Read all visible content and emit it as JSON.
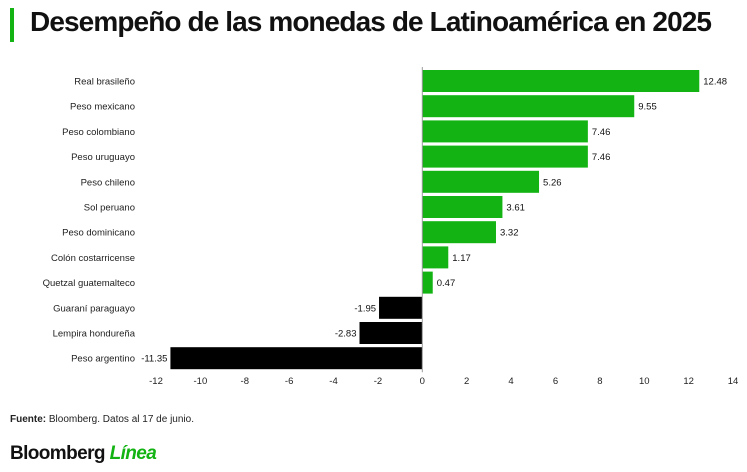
{
  "title": "Desempeño de las monedas de Latinoamérica en 2025",
  "source": {
    "label": "Fuente:",
    "text": " Bloomberg. Datos al 17 de junio."
  },
  "brand": {
    "name": "Bloomberg",
    "suffix": "Línea"
  },
  "colors": {
    "positive": "#12b312",
    "negative": "#000000",
    "accent": "#12b312"
  },
  "chart_data": {
    "type": "bar",
    "orientation": "horizontal",
    "title": "Desempeño de las monedas de Latinoamérica en 2025",
    "categories": [
      "Real brasileño",
      "Peso mexicano",
      "Peso colombiano",
      "Peso uruguayo",
      "Peso chileno",
      "Sol peruano",
      "Peso dominicano",
      "Colón costarricense",
      "Quetzal guatemalteco",
      "Guaraní paraguayo",
      "Lempira hondureña",
      "Peso argentino"
    ],
    "values": [
      12.48,
      9.55,
      7.46,
      7.46,
      5.26,
      3.61,
      3.32,
      1.17,
      0.47,
      -1.95,
      -2.83,
      -11.35
    ],
    "value_labels": [
      "12.48",
      "9.55",
      "7.46",
      "7.46",
      "5.26",
      "3.61",
      "3.32",
      "1.17",
      "0.47",
      "-1.95",
      "-2.83",
      "-11.35"
    ],
    "xlim": [
      -12,
      14
    ],
    "xticks": [
      -12,
      -10,
      -8,
      -6,
      -4,
      -2,
      0,
      2,
      4,
      6,
      8,
      10,
      12,
      14
    ],
    "xlabel": "",
    "ylabel": "",
    "grid": false,
    "legend": "none"
  }
}
